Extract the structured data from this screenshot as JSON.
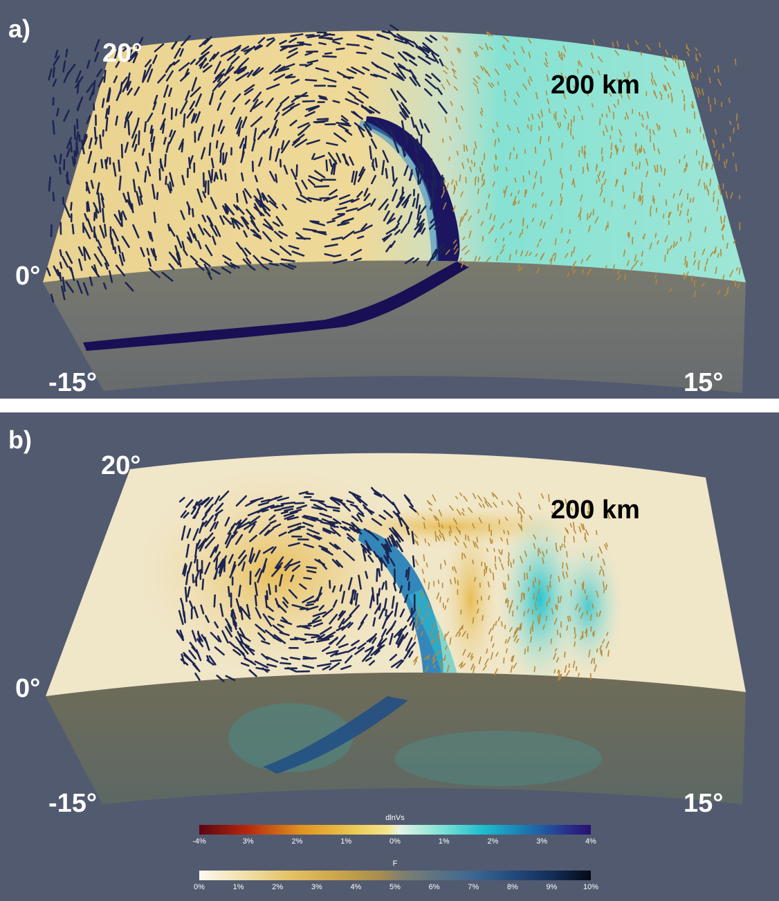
{
  "panels": [
    {
      "letter": "a)",
      "depth_label": "200 km",
      "lat_top": "20°",
      "lat_mid": "0°",
      "lon_left": "-15°",
      "lon_right": "15°"
    },
    {
      "letter": "b)",
      "depth_label": "200 km",
      "lat_top": "20°",
      "lat_mid": "0°",
      "lon_left": "-15°",
      "lon_right": "15°"
    }
  ],
  "colorbars": {
    "dlnvs": {
      "title": "dlnVs",
      "ticks": [
        "-4%",
        "3%",
        "2%",
        "1%",
        "0%",
        "1%",
        "2%",
        "3%",
        "4%"
      ],
      "colors": [
        "#5a0512",
        "#b5260d",
        "#e0921f",
        "#f5e58a",
        "#e6f3e4",
        "#1fc0cf",
        "#1a7bb2",
        "#2b0f70"
      ]
    },
    "f": {
      "title": "F",
      "ticks": [
        "0%",
        "1%",
        "2%",
        "3%",
        "4%",
        "5%",
        "6%",
        "7%",
        "8%",
        "9%",
        "10%"
      ],
      "colors": [
        "#fcf8ee",
        "#e3c062",
        "#a88d4f",
        "#5e7483",
        "#244a7c",
        "#050a16"
      ]
    }
  },
  "colors": {
    "background": "#525a70",
    "slab": "#1c1660",
    "fast_anomaly": "#7ee3d6",
    "slow_anomaly": "#ecd596"
  }
}
